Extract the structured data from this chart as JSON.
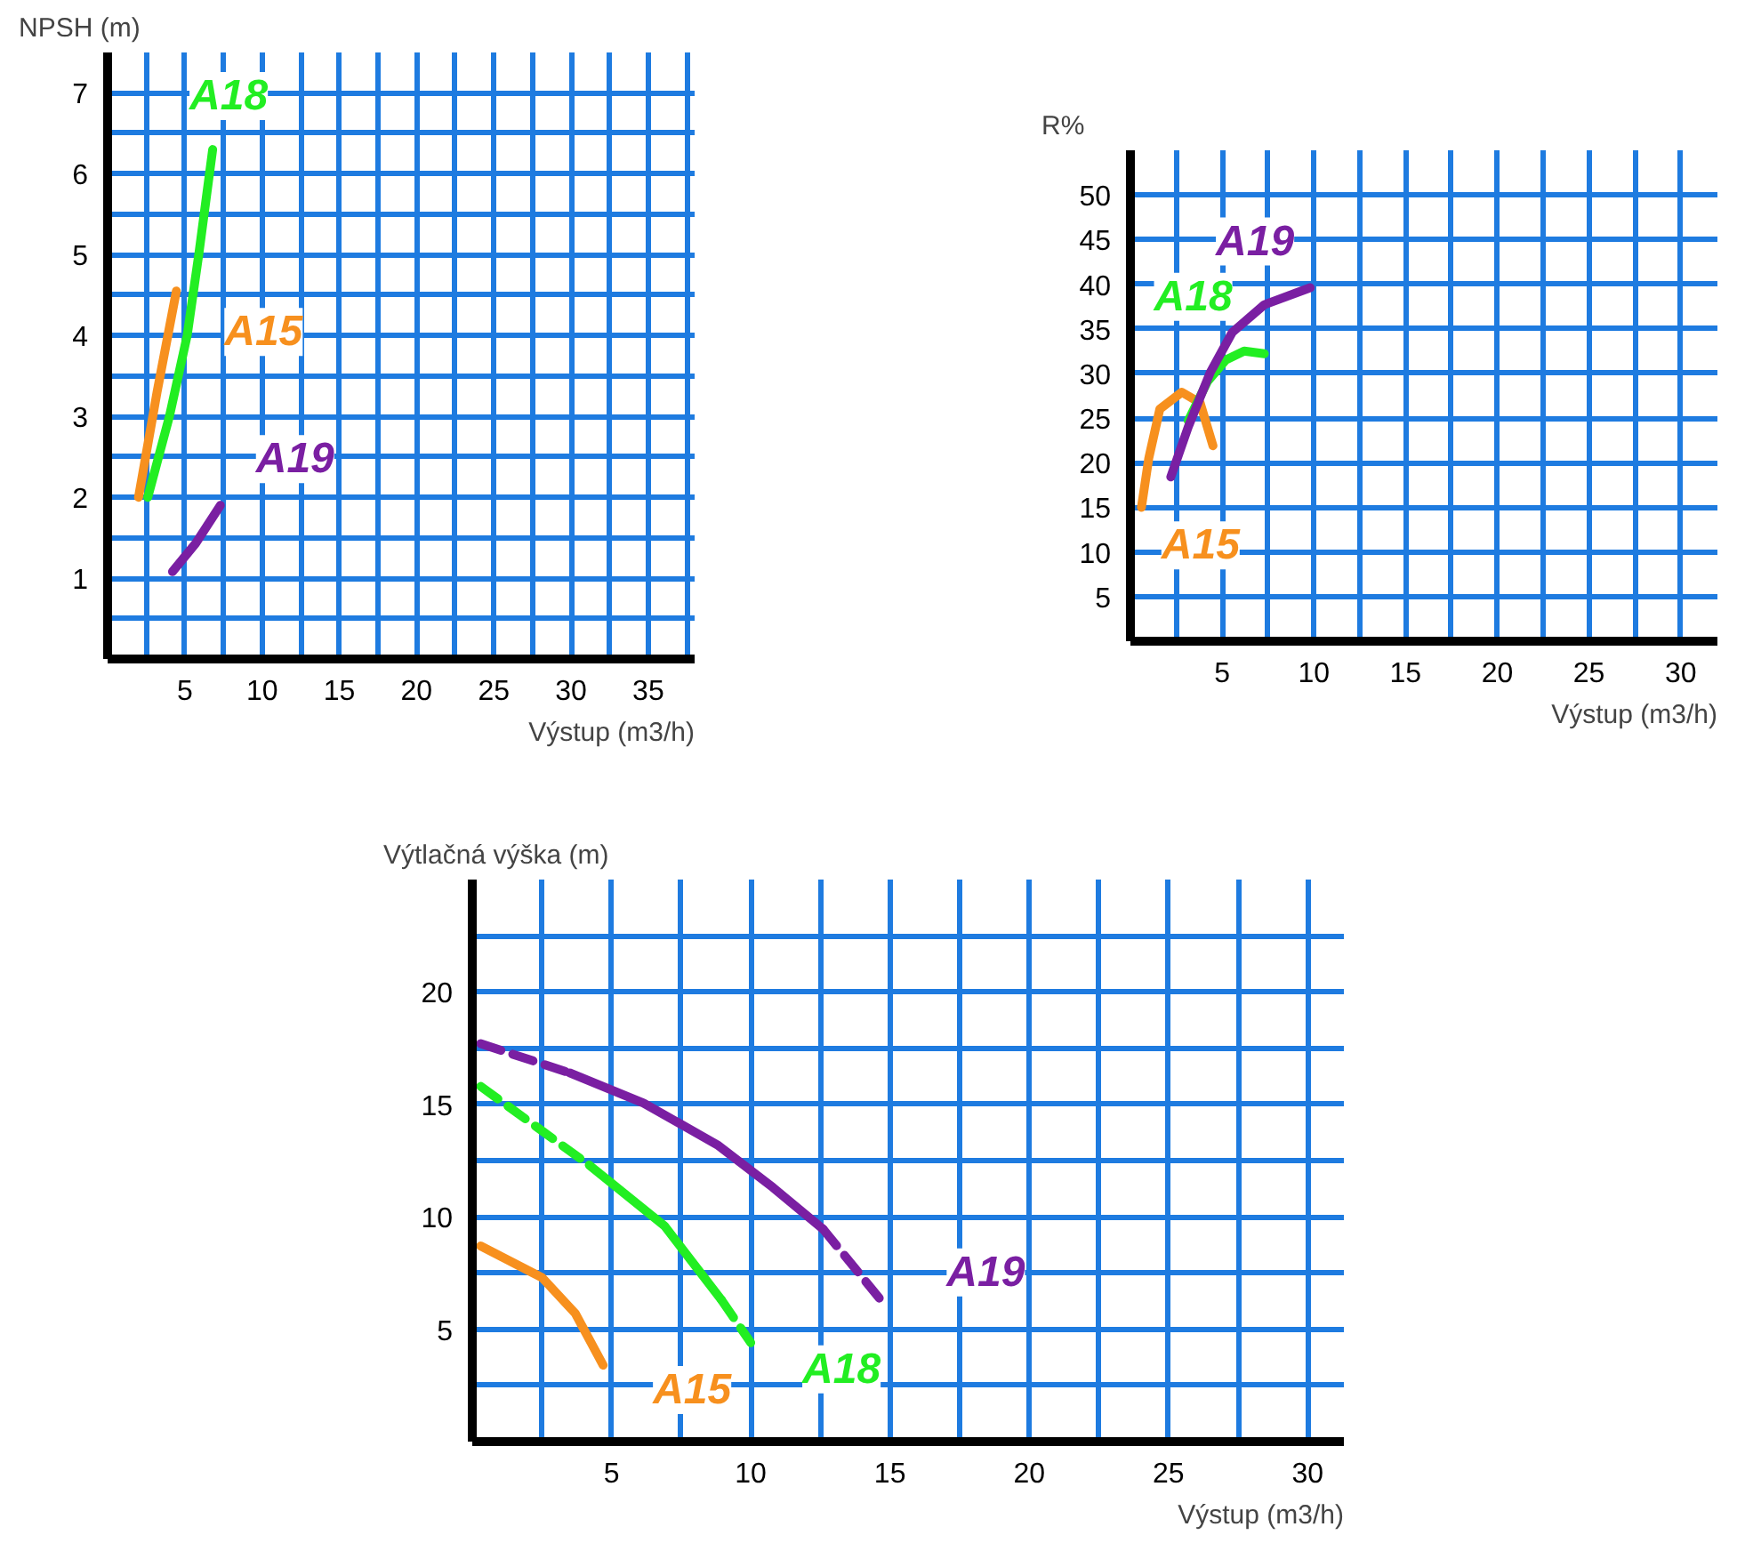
{
  "chart_data": [
    {
      "type": "line",
      "xlabel": "Výstup (m3/h)",
      "ylabel": "NPSH (m)",
      "xlim": [
        0,
        38
      ],
      "ylim": [
        0,
        7.5
      ],
      "grid": true,
      "xticks": [
        {
          "value": 2.5,
          "label": null
        },
        5,
        {
          "value": 7.5,
          "label": null
        },
        10,
        {
          "value": 12.5,
          "label": null
        },
        15,
        {
          "value": 17.5,
          "label": null
        },
        20,
        {
          "value": 22.5,
          "label": null
        },
        25,
        {
          "value": 27.5,
          "label": null
        },
        30,
        {
          "value": 32.5,
          "label": null
        },
        35,
        {
          "value": 37.5,
          "label": null
        }
      ],
      "yticks": [
        {
          "value": 0.5,
          "label": null
        },
        1,
        {
          "value": 1.5,
          "label": null
        },
        2,
        {
          "value": 2.5,
          "label": null
        },
        3,
        {
          "value": 3.5,
          "label": null
        },
        4,
        {
          "value": 4.5,
          "label": null
        },
        5,
        {
          "value": 5.5,
          "label": null
        },
        6,
        {
          "value": 6.5,
          "label": null
        },
        7
      ],
      "series": [
        {
          "name": "A15",
          "color": "#f7901e",
          "line_style": "solid",
          "x": [
            2.0,
            3.2,
            4.45
          ],
          "values": [
            2.0,
            3.3,
            4.55
          ]
        },
        {
          "name": "A18",
          "color": "#22ee22",
          "line_style": "solid",
          "x": [
            2.6,
            4.0,
            5.15,
            5.9,
            6.8
          ],
          "values": [
            2.0,
            3.0,
            4.0,
            5.0,
            6.3
          ]
        },
        {
          "name": "A19",
          "color": "#7a1fa2",
          "line_style": "solid",
          "x": [
            4.2,
            5.7,
            7.3
          ],
          "values": [
            1.08,
            1.43,
            1.9
          ]
        }
      ]
    },
    {
      "type": "line",
      "xlabel": "Výstup (m3/h)",
      "ylabel": "R%",
      "xlim": [
        0,
        32
      ],
      "ylim": [
        0,
        55
      ],
      "grid": true,
      "xticks": [
        {
          "value": 2.5,
          "label": null
        },
        5,
        {
          "value": 7.5,
          "label": null
        },
        10,
        {
          "value": 12.5,
          "label": null
        },
        15,
        {
          "value": 17.5,
          "label": null
        },
        20,
        {
          "value": 22.5,
          "label": null
        },
        25,
        {
          "value": 27.5,
          "label": null
        },
        30
      ],
      "yticks": [
        5,
        10,
        15,
        20,
        25,
        30,
        35,
        40,
        45,
        50
      ],
      "series": [
        {
          "name": "A15",
          "color": "#f7901e",
          "line_style": "solid",
          "x": [
            0.6,
            1.0,
            1.6,
            2.8,
            3.8,
            4.5
          ],
          "values": [
            15,
            20.5,
            26,
            27.9,
            26.7,
            21.9
          ]
        },
        {
          "name": "A18",
          "color": "#22ee22",
          "line_style": "solid",
          "x": [
            3.15,
            4.2,
            5.2,
            6.2,
            7.3
          ],
          "values": [
            24.7,
            29.1,
            31.5,
            32.5,
            32.2
          ]
        },
        {
          "name": "A19",
          "color": "#7a1fa2",
          "line_style": "solid",
          "x": [
            2.2,
            3.15,
            4.35,
            5.55,
            7.3,
            9.8
          ],
          "values": [
            18.4,
            24,
            30.1,
            34.6,
            37.7,
            39.6
          ]
        }
      ]
    },
    {
      "type": "line",
      "xlabel": "Výstup (m3/h)",
      "ylabel": "Výtlačná výška (m)",
      "xlim": [
        0,
        31.3
      ],
      "ylim": [
        0,
        25
      ],
      "grid": true,
      "xticks": [
        {
          "value": 2.5,
          "label": null
        },
        5,
        {
          "value": 7.5,
          "label": null
        },
        10,
        {
          "value": 12.5,
          "label": null
        },
        15,
        {
          "value": 17.5,
          "label": null
        },
        20,
        {
          "value": 22.5,
          "label": null
        },
        25,
        {
          "value": 27.5,
          "label": null
        },
        30
      ],
      "yticks": [
        {
          "value": 2.5,
          "label": null
        },
        5,
        {
          "value": 7.5,
          "label": null
        },
        10,
        {
          "value": 12.5,
          "label": null
        },
        15,
        {
          "value": 17.5,
          "label": null
        },
        20,
        {
          "value": 22.5,
          "label": null
        }
      ],
      "series": [
        {
          "name": "A15",
          "color": "#f7901e",
          "line_style": "solid",
          "x": [
            0.3,
            2.5,
            3.7,
            4.7
          ],
          "values": [
            8.7,
            7.3,
            5.7,
            3.4
          ]
        },
        {
          "color": "#22ee22",
          "line_style": "dashed",
          "x": [
            0.3,
            4.2
          ],
          "values": [
            15.8,
            12.3
          ]
        },
        {
          "color": "#22ee22",
          "line_style": "solid",
          "x": [
            4.2,
            6.9,
            8.95
          ],
          "values": [
            12.3,
            9.6,
            6.3
          ]
        },
        {
          "name": "A18",
          "color": "#22ee22",
          "line_style": "dashed",
          "x": [
            8.95,
            10.0
          ],
          "values": [
            6.3,
            4.4
          ]
        },
        {
          "color": "#7a1fa2",
          "line_style": "dashed",
          "x": [
            0.3,
            3.5
          ],
          "values": [
            17.7,
            16.4
          ]
        },
        {
          "color": "#7a1fa2",
          "line_style": "solid",
          "x": [
            3.5,
            6.15,
            8.8,
            10.8,
            12.6
          ],
          "values": [
            16.4,
            15.06,
            13.2,
            11.3,
            9.45
          ]
        },
        {
          "name": "A19",
          "color": "#7a1fa2",
          "line_style": "dashed",
          "x": [
            12.6,
            14.8
          ],
          "values": [
            9.45,
            6.1
          ]
        }
      ]
    }
  ]
}
